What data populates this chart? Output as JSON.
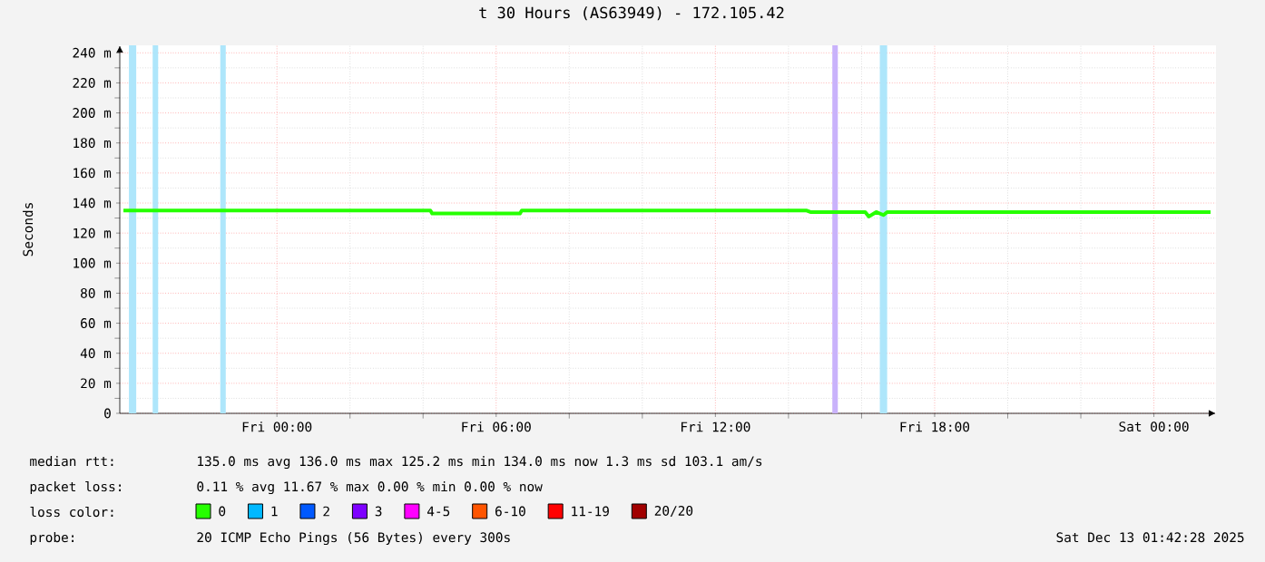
{
  "chart_data": {
    "type": "line",
    "title": "t 30 Hours (AS63949) - 172.105.42",
    "ylabel": "Seconds",
    "legend_title": "loss color:",
    "legend": "bottom",
    "grid": true,
    "marker": "none",
    "line_style": "solid",
    "xlim": [
      "2025-12-11T19:42",
      "2025-12-13T01:42"
    ],
    "ylim": [
      0,
      245
    ],
    "xticks": [
      {
        "value": "2025-12-12T00:00",
        "label": "Fri 00:00"
      },
      {
        "value": "2025-12-12T06:00",
        "label": "Fri 06:00"
      },
      {
        "value": "2025-12-12T12:00",
        "label": "Fri 12:00"
      },
      {
        "value": "2025-12-12T18:00",
        "label": "Fri 18:00"
      },
      {
        "value": "2025-12-13T00:00",
        "label": "Sat 00:00"
      }
    ],
    "yticks": [
      0,
      {
        "value": 20,
        "label": "20 m"
      },
      {
        "value": 40,
        "label": "40 m"
      },
      {
        "value": 60,
        "label": "60 m"
      },
      {
        "value": 80,
        "label": "80 m"
      },
      {
        "value": 100,
        "label": "100 m"
      },
      {
        "value": 120,
        "label": "120 m"
      },
      {
        "value": 140,
        "label": "140 m"
      },
      {
        "value": 160,
        "label": "160 m"
      },
      {
        "value": 180,
        "label": "180 m"
      },
      {
        "value": 200,
        "label": "200 m"
      },
      {
        "value": 220,
        "label": "220 m"
      },
      {
        "value": 240,
        "label": "240 m"
      }
    ],
    "series": [
      {
        "name": "0",
        "color": "#26ff00",
        "x": [
          "2025-12-11T19:48",
          "2025-12-12T04:12",
          "2025-12-12T04:15",
          "2025-12-12T06:39",
          "2025-12-12T06:42",
          "2025-12-12T14:30",
          "2025-12-12T14:36",
          "2025-12-12T16:06",
          "2025-12-12T16:12",
          "2025-12-12T16:24",
          "2025-12-12T16:36",
          "2025-12-12T16:42",
          "2025-12-13T01:33"
        ],
        "values": [
          135,
          135,
          133,
          133,
          135,
          135,
          134,
          134,
          131,
          134,
          132,
          134,
          134
        ]
      },
      {
        "name": "1",
        "color": "#00b8ff"
      },
      {
        "name": "2",
        "color": "#0059ff"
      },
      {
        "name": "3",
        "color": "#7e00ff"
      },
      {
        "name": "4-5",
        "color": "#ff00ff"
      },
      {
        "name": "6-10",
        "color": "#ff5500"
      },
      {
        "name": "11-19",
        "color": "#ff0000"
      },
      {
        "name": "20/20",
        "color": "#a10000"
      }
    ],
    "bands": [
      {
        "axis": "x",
        "from": "2025-12-11T19:57",
        "to": "2025-12-11T20:09",
        "color": "#aee6fb"
      },
      {
        "axis": "x",
        "from": "2025-12-11T20:36",
        "to": "2025-12-11T20:45",
        "color": "#aee6fb"
      },
      {
        "axis": "x",
        "from": "2025-12-11T22:27",
        "to": "2025-12-11T22:36",
        "color": "#aee6fb"
      },
      {
        "axis": "x",
        "from": "2025-12-12T15:12",
        "to": "2025-12-12T15:21",
        "color": "#c9b2fb"
      },
      {
        "axis": "x",
        "from": "2025-12-12T16:30",
        "to": "2025-12-12T16:42",
        "color": "#aee6fb"
      }
    ],
    "annotations": [
      "median rtt:",
      "135.0 ms avg  136.0 ms max  125.2 ms min  134.0 ms now  1.3 ms sd  103.1   am/s",
      "packet loss:",
      "0.11 % avg  11.67 % max  0.00 % min  0.00 % now",
      "probe:",
      "20 ICMP Echo Pings (56 Bytes) every 300s",
      "Sat Dec 13 01:42:28 2025"
    ]
  }
}
